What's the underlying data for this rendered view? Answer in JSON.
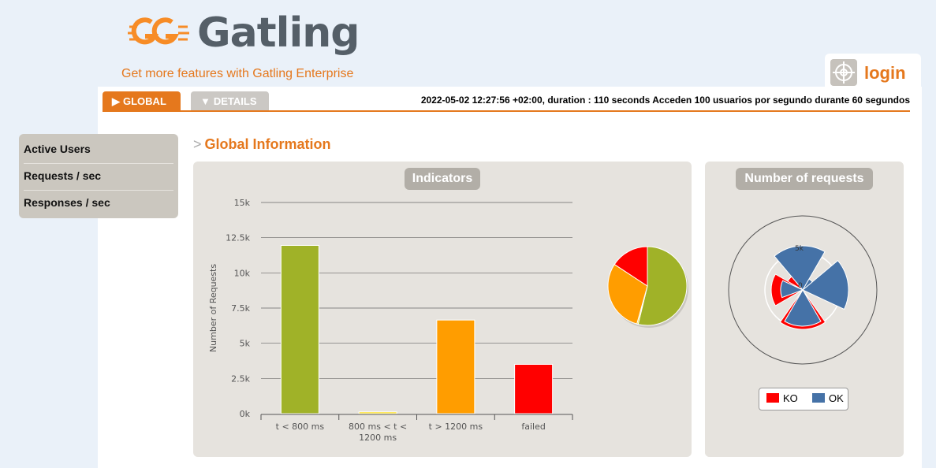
{
  "brand": {
    "name": "Gatling",
    "enterprise_link": "Get more features with Gatling Enterprise"
  },
  "login": {
    "label": "login",
    "icon": "target-icon"
  },
  "tabs": [
    {
      "label": "GLOBAL",
      "active": true
    },
    {
      "label": "DETAILS",
      "active": false
    }
  ],
  "run_info": "2022-05-02 12:27:56 +02:00, duration : 110 seconds Acceden 100 usuarios por segundo durante 60 segundos",
  "sidebar": {
    "items": [
      {
        "label": "Active Users"
      },
      {
        "label": "Requests / sec"
      },
      {
        "label": "Responses / sec"
      }
    ]
  },
  "section": {
    "title": "Global Information"
  },
  "indicators_panel": {
    "title": "Indicators"
  },
  "requests_panel": {
    "title": "Number of requests"
  },
  "colors": {
    "green": "#a0b228",
    "yellow": "#ffdd00",
    "orange": "#ff9d00",
    "red": "#ff0000",
    "blue": "#4572a7",
    "accent": "#e5781d"
  },
  "chart_data": [
    {
      "type": "bar",
      "title": "Indicators",
      "ylabel": "Number of Requests",
      "categories": [
        "t < 800 ms",
        "800 ms < t < 1200 ms",
        "t > 1200 ms",
        "failed"
      ],
      "category_lines": [
        [
          "t < 800 ms"
        ],
        [
          "800 ms < t <",
          "1200 ms"
        ],
        [
          "t > 1200 ms"
        ],
        [
          "failed"
        ]
      ],
      "values": [
        11950,
        120,
        6650,
        3500
      ],
      "colors": [
        "#a0b228",
        "#ffdd00",
        "#ff9d00",
        "#ff0000"
      ],
      "ylim": [
        0,
        15000
      ],
      "yticks": [
        "0k",
        "2.5k",
        "5k",
        "7.5k",
        "10k",
        "12.5k",
        "15k"
      ],
      "grid": true
    },
    {
      "type": "pie",
      "categories": [
        "t < 800 ms",
        "800 ms < t < 1200 ms",
        "t > 1200 ms",
        "failed"
      ],
      "values": [
        11950,
        120,
        6650,
        3500
      ],
      "colors": [
        "#a0b228",
        "#ffdd00",
        "#ff9d00",
        "#ff0000"
      ]
    },
    {
      "type": "polar",
      "series": [
        {
          "name": "KO",
          "color": "#ff0000"
        },
        {
          "name": "OK",
          "color": "#4572a7"
        }
      ],
      "axis_labels": [
        "5k",
        "0"
      ]
    }
  ]
}
